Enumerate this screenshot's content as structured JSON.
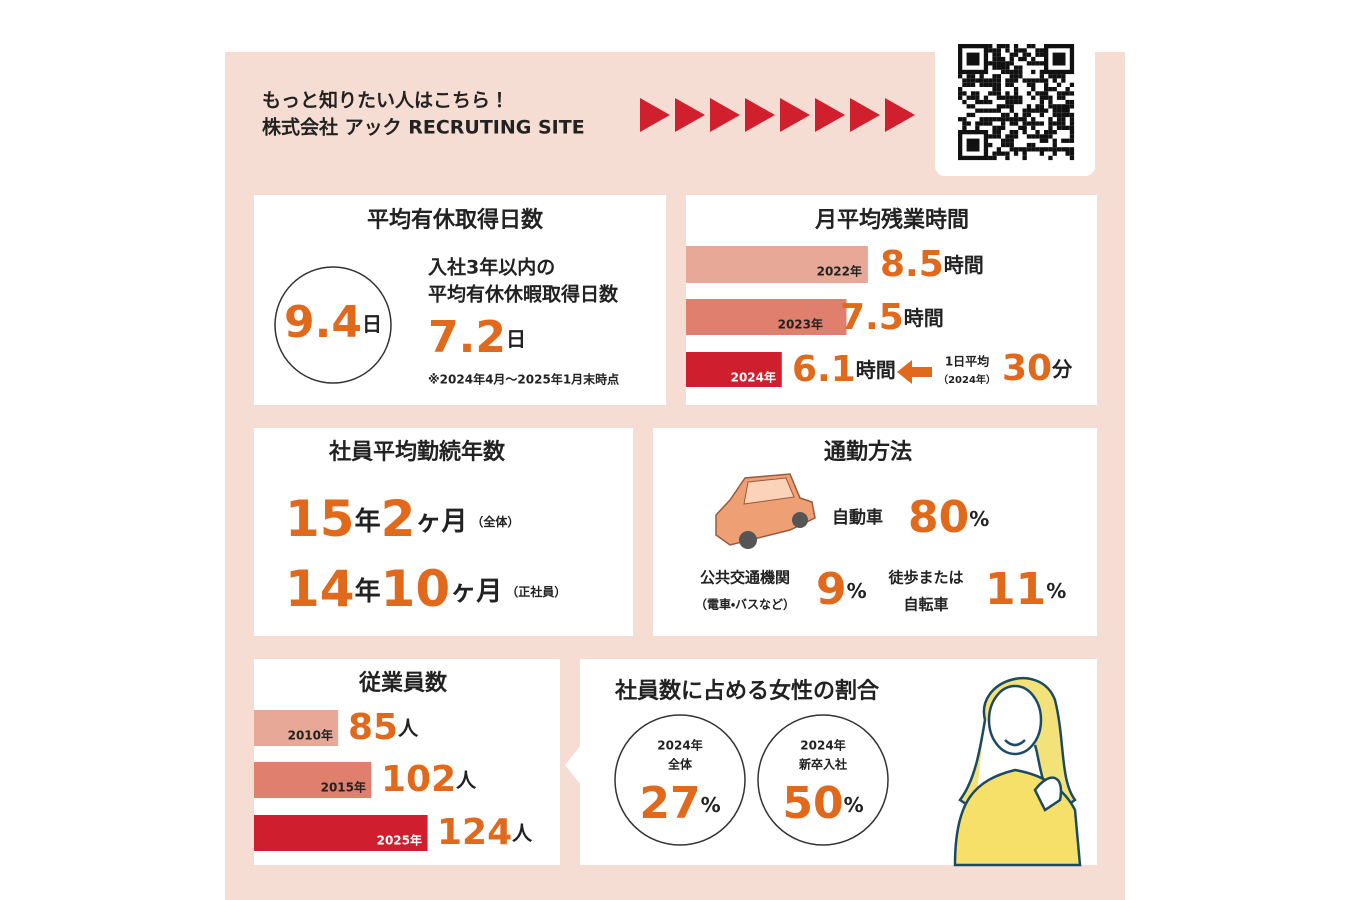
{
  "header": {
    "line1": "もっと知りたい人はこちら！",
    "line2": "株式会社 アック RECRUTING SITE"
  },
  "paid_leave": {
    "title": "平均有休取得日数",
    "average": 9.4,
    "unit": "日",
    "sub_line1": "入社3年以内の",
    "sub_line2": "平均有休休暇取得日数",
    "new_average": 7.2,
    "note": "※2024年4月～2025年1月末時点"
  },
  "overtime": {
    "title": "月平均残業時間",
    "unit": "時間",
    "rows": [
      {
        "year": "2022年",
        "value": 8.5
      },
      {
        "year": "2023年",
        "value": 7.5
      },
      {
        "year": "2024年",
        "value": 6.1
      }
    ],
    "daily_label": "1日平均",
    "daily_year": "（2024年）",
    "daily_value": 30,
    "daily_unit": "分"
  },
  "tenure": {
    "title": "社員平均勤続年数",
    "rows": [
      {
        "years": 15,
        "year_unit": "年",
        "months": 2,
        "month_unit": "ヶ月",
        "group": "（全体）"
      },
      {
        "years": 14,
        "year_unit": "年",
        "months": 10,
        "month_unit": "ヶ月",
        "group": "（正社員）"
      }
    ]
  },
  "commute": {
    "title": "通勤方法",
    "unit": "%",
    "car_label": "自動車",
    "car": 80,
    "public_label": "公共交通機関",
    "public_sub": "（電車・バスなど）",
    "public": 9,
    "walk_label1": "徒歩または",
    "walk_label2": "自転車",
    "walk": 11
  },
  "employees": {
    "title": "従業員数",
    "unit": "人",
    "rows": [
      {
        "year": "2010年",
        "value": 85
      },
      {
        "year": "2015年",
        "value": 102
      },
      {
        "year": "2025年",
        "value": 124
      }
    ]
  },
  "women": {
    "title": "社員数に占める女性の割合",
    "unit": "%",
    "groups": [
      {
        "year": "2024年",
        "label": "全体",
        "value": 27
      },
      {
        "year": "2024年",
        "label": "新卒入社",
        "value": 50
      }
    ]
  }
}
